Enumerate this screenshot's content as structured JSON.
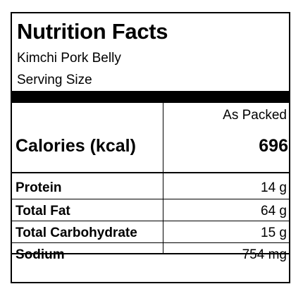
{
  "label": {
    "title": "Nutrition Facts",
    "product_name": "Kimchi Pork Belly",
    "serving_size_label": "Serving Size",
    "column_header": "As Packed",
    "calories": {
      "name": "Calories (kcal)",
      "value": "696"
    },
    "nutrients": [
      {
        "name": "Protein",
        "amount": "14",
        "unit": "g"
      },
      {
        "name": "Total Fat",
        "amount": "64",
        "unit": "g"
      },
      {
        "name": "Total Carbohydrate",
        "amount": "15",
        "unit": "g"
      },
      {
        "name": "Sodium",
        "amount": "754",
        "unit": "mg"
      }
    ]
  }
}
